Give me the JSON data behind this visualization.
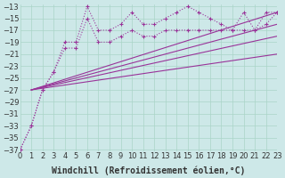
{
  "background_color": "#cde8e8",
  "grid_color": "#aad4c8",
  "line_color": "#993399",
  "x_values": [
    0,
    1,
    2,
    3,
    4,
    5,
    6,
    7,
    8,
    9,
    10,
    11,
    12,
    13,
    14,
    15,
    16,
    17,
    18,
    19,
    20,
    21,
    22,
    23
  ],
  "series1": [
    -37,
    -33,
    -27,
    -24,
    -19,
    -19,
    -13,
    -17,
    -17,
    -16,
    -14,
    -16,
    -16,
    -15,
    -14,
    -13,
    -14,
    -15,
    -16,
    -17,
    -14,
    -17,
    -14,
    -14
  ],
  "series2": [
    -37,
    -33,
    -27,
    -24,
    -20,
    -20,
    -15,
    -19,
    -19,
    -18,
    -17,
    -18,
    -18,
    -17,
    -17,
    -17,
    -17,
    -17,
    -17,
    -17,
    -17,
    -17,
    -16,
    -14
  ],
  "straight_lines": [
    {
      "x": [
        1,
        23
      ],
      "y": [
        -27,
        -14
      ]
    },
    {
      "x": [
        1,
        23
      ],
      "y": [
        -27,
        -16
      ]
    },
    {
      "x": [
        1,
        23
      ],
      "y": [
        -27,
        -18
      ]
    },
    {
      "x": [
        1,
        23
      ],
      "y": [
        -27,
        -21
      ]
    }
  ],
  "xlabel": "Windchill (Refroidissement éolien,°C)",
  "ylim": [
    -37,
    -13
  ],
  "xlim": [
    0,
    23
  ],
  "yticks": [
    -37,
    -35,
    -33,
    -31,
    -29,
    -27,
    -25,
    -23,
    -21,
    -19,
    -17,
    -15,
    -13
  ],
  "xticks": [
    0,
    1,
    2,
    3,
    4,
    5,
    6,
    7,
    8,
    9,
    10,
    11,
    12,
    13,
    14,
    15,
    16,
    17,
    18,
    19,
    20,
    21,
    22,
    23
  ],
  "font_size": 6
}
